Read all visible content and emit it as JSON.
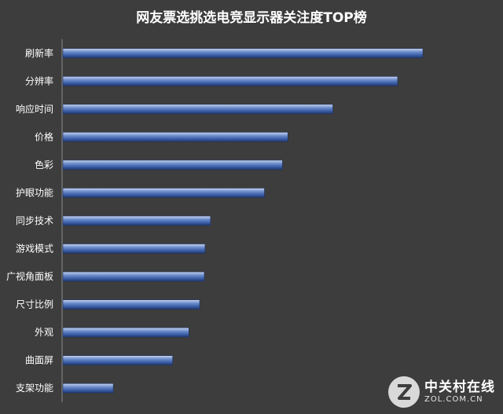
{
  "chart_data": {
    "type": "bar",
    "orientation": "horizontal",
    "title": "网友票选挑选电竞显示器关注度TOP榜",
    "categories": [
      "刷新率",
      "分辨率",
      "响应时间",
      "价格",
      "色彩",
      "护眼功能",
      "同步技术",
      "游戏模式",
      "广视角面板",
      "尺寸比例",
      "外观",
      "曲面屏",
      "支架功能"
    ],
    "values": [
      100,
      93,
      75,
      62.5,
      61,
      56,
      41,
      39.5,
      39.3,
      38,
      35,
      30.5,
      14
    ],
    "xlim": [
      0,
      100
    ],
    "grid": false,
    "legend": "none",
    "bar_color": "#3b5ea8"
  },
  "watermark": {
    "brand_cn": "中关村在线",
    "brand_en": "ZOL.COM.CN"
  }
}
